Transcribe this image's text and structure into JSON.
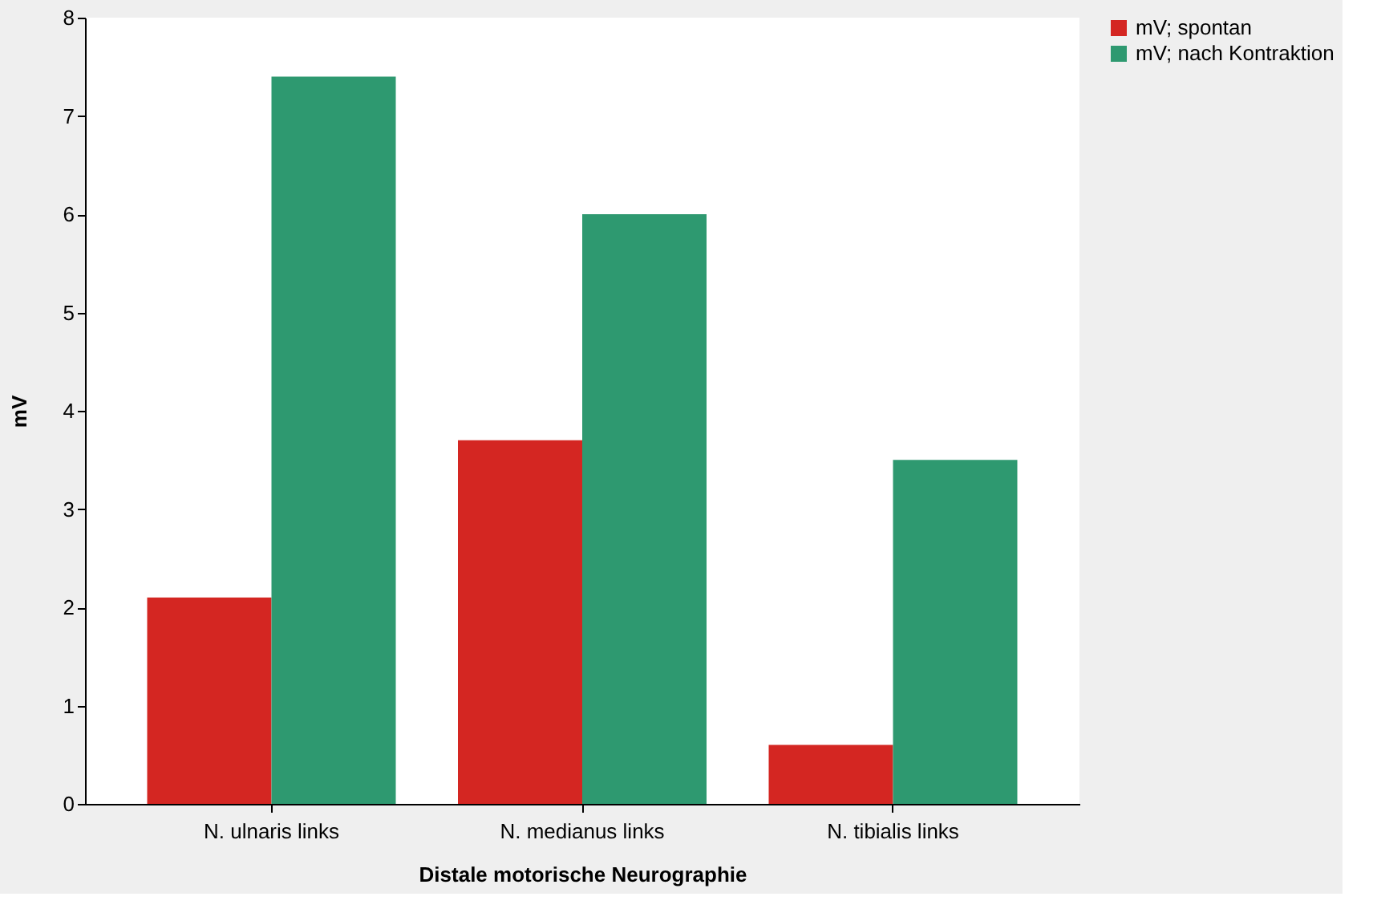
{
  "chart_data": {
    "type": "bar",
    "xlabel": "Distale motorische Neurographie",
    "ylabel": "mV",
    "categories": [
      "N. ulnaris links",
      "N. medianus links",
      "N. tibialis links"
    ],
    "series": [
      {
        "name": "mV; spontan",
        "color": "#d42622",
        "values": [
          2.1,
          3.7,
          0.6
        ]
      },
      {
        "name": "mV; nach Kontraktion",
        "color": "#2e9970",
        "values": [
          7.4,
          6.0,
          3.5
        ]
      }
    ],
    "ylim": [
      0,
      8
    ],
    "yticks": [
      0,
      1,
      2,
      3,
      4,
      5,
      6,
      7,
      8
    ],
    "grid": false,
    "legend": "right"
  }
}
